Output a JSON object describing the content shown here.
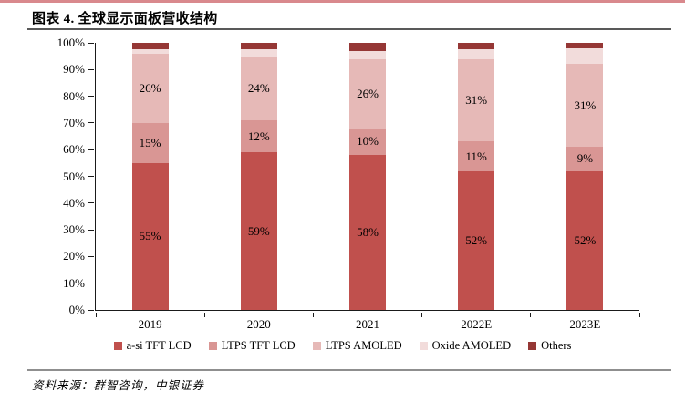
{
  "header": {
    "title": "图表 4. 全球显示面板营收结构"
  },
  "footer": {
    "source": "资料来源：群智咨询，中银证券"
  },
  "style": {
    "accent_pink": "#d9898d",
    "title_rule_color": "#595959",
    "footer_rule_color": "#8f8f8f",
    "axis_color": "#1a1a1a",
    "label_color": "#000000"
  },
  "chart_data": {
    "type": "bar",
    "stacked": true,
    "title": "全球显示面板营收结构",
    "categories": [
      "2019",
      "2020",
      "2021",
      "2022E",
      "2023E"
    ],
    "series": [
      {
        "name": "a-si TFT LCD",
        "color": "#c0504d",
        "values": [
          55,
          59,
          58,
          52,
          52
        ],
        "labels": [
          "55%",
          "59%",
          "58%",
          "52%",
          "52%"
        ]
      },
      {
        "name": "LTPS TFT LCD",
        "color": "#d99694",
        "values": [
          15,
          12,
          10,
          11,
          9
        ],
        "labels": [
          "15%",
          "12%",
          "10%",
          "11%",
          "9%"
        ]
      },
      {
        "name": "LTPS AMOLED",
        "color": "#e6b9b7",
        "values": [
          26,
          24,
          26,
          31,
          31
        ],
        "labels": [
          "26%",
          "24%",
          "26%",
          "31%",
          "31%"
        ]
      },
      {
        "name": "Oxide AMOLED",
        "color": "#f2dcdb",
        "values": [
          1.5,
          2.5,
          3,
          3.5,
          6
        ],
        "labels": [
          "",
          "",
          "",
          "",
          ""
        ]
      },
      {
        "name": "Others",
        "color": "#953735",
        "values": [
          2.5,
          2.5,
          3,
          2.5,
          2
        ],
        "labels": [
          "",
          "",
          "",
          "",
          ""
        ]
      }
    ],
    "ylim": [
      0,
      100
    ],
    "y_tick_step": 10,
    "y_tick_labels": [
      "0%",
      "10%",
      "20%",
      "30%",
      "40%",
      "50%",
      "60%",
      "70%",
      "80%",
      "90%",
      "100%"
    ],
    "grid": false,
    "legend_position": "bottom"
  }
}
